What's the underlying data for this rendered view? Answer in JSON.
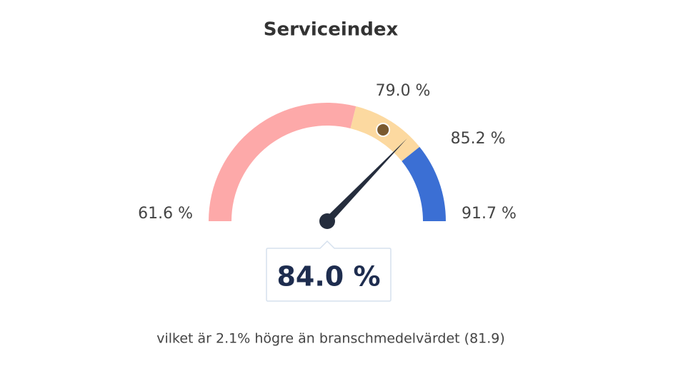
{
  "chart_data": {
    "type": "gauge",
    "title": "Serviceindex",
    "ylim": [
      61.6,
      91.7
    ],
    "yticks": [
      {
        "value": 61.6,
        "label": "61.6 %"
      },
      {
        "value": 79.0,
        "label": "79.0 %"
      },
      {
        "value": 85.2,
        "label": "85.2 %"
      },
      {
        "value": 91.7,
        "label": "91.7 %"
      }
    ],
    "band_colors": [
      "#fda9a9",
      "#fcd9a0",
      "#3b6fd4"
    ],
    "value": 84.0,
    "value_label": "84.0 %",
    "benchmark": 81.9,
    "note": "vilket är 2.1% högre än branschmedelvärdet (81.9)"
  }
}
